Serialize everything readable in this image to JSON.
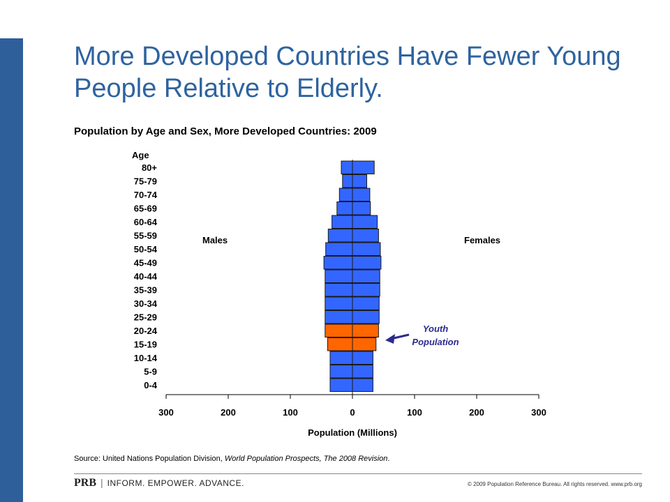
{
  "slide": {
    "title": "More Developed Countries Have Fewer Young People Relative to Elderly."
  },
  "chart_data": {
    "type": "bar",
    "orientation": "horizontal-population-pyramid",
    "title": "Population by Age and Sex, More Developed Countries: 2009",
    "y_axis_title": "Age",
    "xlabel": "Population (Millions)",
    "side_labels": {
      "left": "Males",
      "right": "Females"
    },
    "categories": [
      "80+",
      "75-79",
      "70-74",
      "65-69",
      "60-64",
      "55-59",
      "50-54",
      "45-49",
      "40-44",
      "35-39",
      "30-34",
      "25-29",
      "20-24",
      "15-19",
      "10-14",
      "5-9",
      "0-4"
    ],
    "series": [
      {
        "name": "Males",
        "values": [
          18,
          16,
          21,
          25,
          33,
          39,
          43,
          46,
          44,
          44,
          44,
          44,
          44,
          40,
          36,
          36,
          36
        ]
      },
      {
        "name": "Females",
        "values": [
          35,
          23,
          28,
          29,
          40,
          42,
          45,
          46,
          44,
          44,
          43,
          43,
          42,
          38,
          33,
          33,
          33
        ]
      }
    ],
    "highlight_categories": [
      "20-24",
      "15-19"
    ],
    "xlim": [
      -300,
      300
    ],
    "xticks": [
      "300",
      "200",
      "100",
      "0",
      "100",
      "200",
      "300"
    ],
    "annotation": {
      "line1": "Youth",
      "line2": "Population"
    },
    "colors": {
      "bar": "#3366ff",
      "highlight": "#ff6600",
      "outline": "#1a1a1a",
      "annotation": "#2b2b8f"
    }
  },
  "source": {
    "prefix": "Source: United Nations Population Division, ",
    "italic": "World Population Prospects, The 2008 Revision",
    "suffix": "."
  },
  "footer": {
    "brand": "PRB",
    "separator": "|",
    "tagline": "INFORM. EMPOWER. ADVANCE.",
    "copyright": "© 2009 Population Reference Bureau. All rights reserved. www.prb.org"
  }
}
